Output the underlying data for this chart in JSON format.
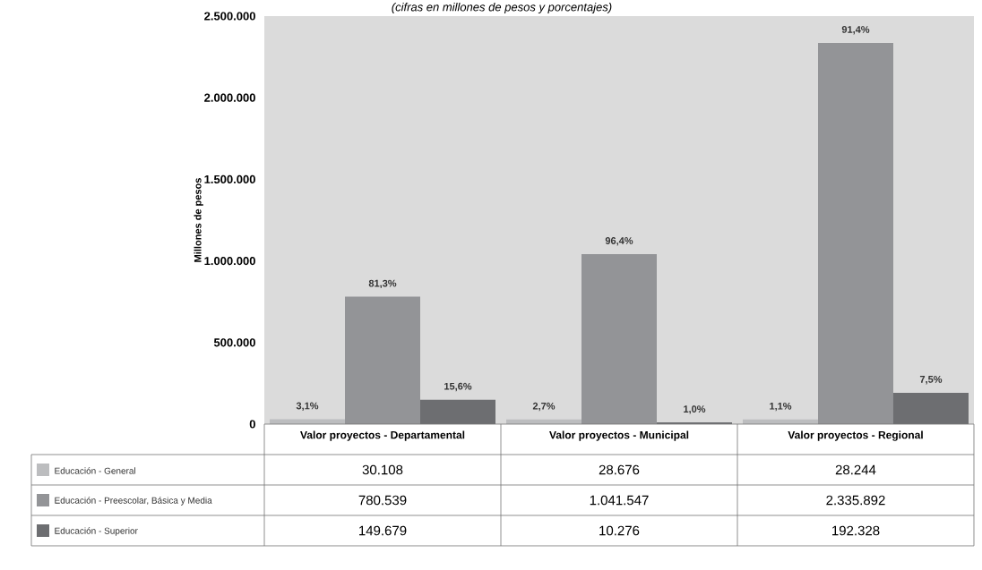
{
  "chart_data": {
    "type": "bar",
    "title": "(cifras en millones de pesos y porcentajes)",
    "ylabel": "Millones de pesos",
    "categories": [
      "Valor proyectos - Departamental",
      "Valor proyectos - Municipal",
      "Valor proyectos - Regional"
    ],
    "series": [
      {
        "name": "Educación - General",
        "color": "#bcbdbf",
        "values": [
          30108,
          28676,
          28244
        ],
        "value_labels": [
          "30.108",
          "28.676",
          "28.244"
        ]
      },
      {
        "name": "Educación - Preescolar, Básica y Media",
        "color": "#939497",
        "values": [
          780539,
          1041547,
          2335892
        ],
        "value_labels": [
          "780.539",
          "1.041.547",
          "2.335.892"
        ]
      },
      {
        "name": "Educación - Superior",
        "color": "#6d6e71",
        "values": [
          149679,
          10276,
          192328
        ],
        "value_labels": [
          "149.679",
          "10.276",
          "192.328"
        ]
      }
    ],
    "annotations": [
      "3,1%",
      "81,3%",
      "15,6%",
      "2,7%",
      "96,4%",
      "1,0%",
      "1,1%",
      "91,4%",
      "7,5%"
    ],
    "data_labels": true,
    "ylim": [
      0,
      2500000
    ],
    "yticks": [
      {
        "value": 0,
        "label": "0"
      },
      {
        "value": 500000,
        "label": "500.000"
      },
      {
        "value": 1000000,
        "label": "1.000.000"
      },
      {
        "value": 1500000,
        "label": "1.500.000"
      },
      {
        "value": 2000000,
        "label": "2.000.000"
      },
      {
        "value": 2500000,
        "label": "2.500.000"
      }
    ],
    "legend": "bottom"
  }
}
